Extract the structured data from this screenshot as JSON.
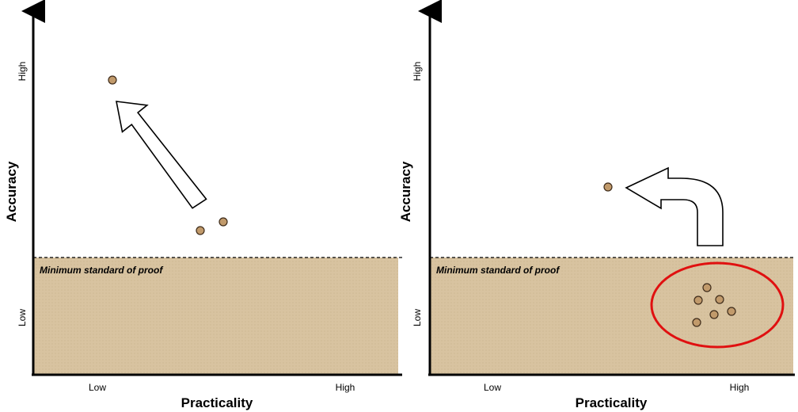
{
  "colors": {
    "zone_fill": "#d8c3a0",
    "point_fill": "#c19a6b",
    "point_stroke": "#3d2b1a",
    "highlight": "#e01010",
    "axis": "#000000",
    "arrow_fill": "#ffffff"
  },
  "labels": {
    "left": {
      "y_axis": "Accuracy",
      "x_axis": "Practicality",
      "y_high": "High",
      "y_low": "Low",
      "x_low": "Low",
      "x_high": "High",
      "threshold": "Minimum standard of proof"
    },
    "right": {
      "y_axis": "Accuracy",
      "x_axis": "Practicality",
      "y_high": "High",
      "y_low": "Low",
      "x_low": "Low",
      "x_high": "High",
      "threshold": "Minimum standard of proof"
    }
  },
  "icons": {
    "left_arrow": "straight-up-left-arrow-icon",
    "right_arrow": "curved-up-left-arrow-icon"
  }
}
